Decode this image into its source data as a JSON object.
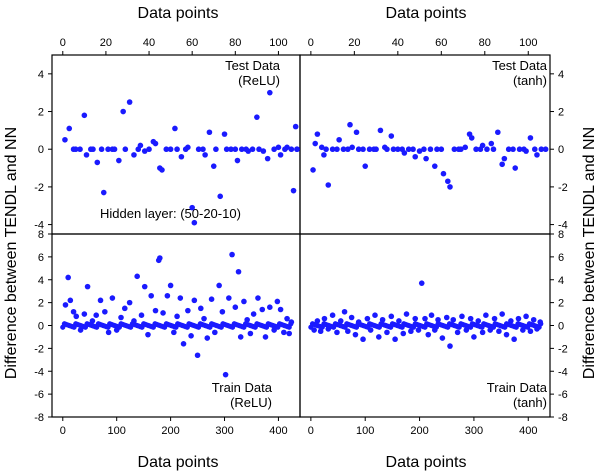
{
  "figure": {
    "x_title_top": "Data points",
    "x_title_bottom": "Data points",
    "y_title": "Difference between TENDL and NN",
    "marker_color": "#1a1aff"
  },
  "chart_data": [
    {
      "type": "scatter",
      "id": "test_relu",
      "xlabel": "Data points",
      "ylabel": "Difference between TENDL and NN",
      "xlim": [
        -5,
        110
      ],
      "ylim": [
        -4.5,
        5
      ],
      "xticks": [
        0,
        20,
        40,
        60,
        80,
        100
      ],
      "yticks": [
        -4,
        -2,
        0,
        2,
        4
      ],
      "annotation": [
        "Test Data",
        "(ReLU)"
      ],
      "note": "Hidden layer: (50-20-10)",
      "points": [
        [
          1,
          0.5
        ],
        [
          3,
          1.1
        ],
        [
          5,
          0
        ],
        [
          6,
          0
        ],
        [
          8,
          0
        ],
        [
          10,
          1.8
        ],
        [
          11,
          -0.3
        ],
        [
          13,
          0
        ],
        [
          14,
          0
        ],
        [
          16,
          -0.7
        ],
        [
          18,
          0
        ],
        [
          19,
          -2.3
        ],
        [
          21,
          0
        ],
        [
          23,
          0
        ],
        [
          24,
          0
        ],
        [
          26,
          -0.6
        ],
        [
          28,
          2.0
        ],
        [
          29,
          0
        ],
        [
          31,
          2.5
        ],
        [
          33,
          -0.3
        ],
        [
          35,
          0
        ],
        [
          36,
          0.2
        ],
        [
          38,
          -0.1
        ],
        [
          40,
          0
        ],
        [
          42,
          0.4
        ],
        [
          43,
          0.3
        ],
        [
          45,
          -1.0
        ],
        [
          46,
          -1.1
        ],
        [
          48,
          0
        ],
        [
          50,
          0
        ],
        [
          52,
          1.1
        ],
        [
          53,
          0
        ],
        [
          55,
          -0.4
        ],
        [
          57,
          0
        ],
        [
          58,
          0.1
        ],
        [
          60,
          -3.1
        ],
        [
          61,
          -3.9
        ],
        [
          63,
          0
        ],
        [
          65,
          0
        ],
        [
          66,
          -0.3
        ],
        [
          68,
          0.9
        ],
        [
          70,
          -0.9
        ],
        [
          71,
          0
        ],
        [
          73,
          -2.5
        ],
        [
          75,
          0.8
        ],
        [
          76,
          0
        ],
        [
          78,
          0
        ],
        [
          80,
          0
        ],
        [
          81,
          -0.6
        ],
        [
          83,
          0
        ],
        [
          85,
          0
        ],
        [
          86,
          -0.1
        ],
        [
          88,
          0
        ],
        [
          90,
          1.7
        ],
        [
          91,
          0
        ],
        [
          93,
          -0.1
        ],
        [
          95,
          -0.5
        ],
        [
          96,
          3.0
        ],
        [
          98,
          0
        ],
        [
          100,
          0.1
        ],
        [
          101,
          -0.3
        ],
        [
          103,
          0
        ],
        [
          104,
          0.1
        ],
        [
          106,
          0
        ],
        [
          107,
          -2.2
        ],
        [
          108,
          1.2
        ],
        [
          110,
          0
        ],
        [
          112,
          0
        ]
      ]
    },
    {
      "type": "scatter",
      "id": "test_tanh",
      "xlabel": "Data points",
      "ylabel": "Difference between TENDL and NN",
      "xlim": [
        -5,
        110
      ],
      "ylim": [
        -4.5,
        5
      ],
      "xticks": [
        0,
        20,
        40,
        60,
        80,
        100
      ],
      "yticks": [
        -4,
        -2,
        0,
        2,
        4
      ],
      "annotation": [
        "Test Data",
        "(tanh)"
      ],
      "points": [
        [
          1,
          -1.1
        ],
        [
          2,
          0.3
        ],
        [
          3,
          0.8
        ],
        [
          5,
          0.1
        ],
        [
          6,
          -0.3
        ],
        [
          7,
          0
        ],
        [
          8,
          -1.9
        ],
        [
          10,
          0
        ],
        [
          12,
          0
        ],
        [
          13,
          0.5
        ],
        [
          15,
          0
        ],
        [
          17,
          0
        ],
        [
          18,
          1.3
        ],
        [
          19,
          0.1
        ],
        [
          21,
          0.9
        ],
        [
          22,
          0
        ],
        [
          24,
          0
        ],
        [
          25,
          -0.9
        ],
        [
          27,
          0
        ],
        [
          29,
          0
        ],
        [
          30,
          0
        ],
        [
          32,
          1.0
        ],
        [
          34,
          0.1
        ],
        [
          35,
          0
        ],
        [
          37,
          0.7
        ],
        [
          38,
          0
        ],
        [
          40,
          0
        ],
        [
          42,
          0
        ],
        [
          43,
          -0.2
        ],
        [
          45,
          0
        ],
        [
          47,
          0
        ],
        [
          48,
          -0.4
        ],
        [
          50,
          -0.1
        ],
        [
          52,
          0
        ],
        [
          53,
          -0.5
        ],
        [
          55,
          0
        ],
        [
          57,
          -0.9
        ],
        [
          58,
          0
        ],
        [
          60,
          0
        ],
        [
          61,
          -1.3
        ],
        [
          63,
          -1.7
        ],
        [
          64,
          -2.0
        ],
        [
          66,
          0
        ],
        [
          68,
          0
        ],
        [
          69,
          0
        ],
        [
          71,
          0.1
        ],
        [
          73,
          0.8
        ],
        [
          74,
          0.6
        ],
        [
          76,
          0
        ],
        [
          78,
          0
        ],
        [
          79,
          0.2
        ],
        [
          81,
          0
        ],
        [
          83,
          0.3
        ],
        [
          84,
          0
        ],
        [
          86,
          0.9
        ],
        [
          88,
          -0.8
        ],
        [
          89,
          -0.5
        ],
        [
          91,
          0
        ],
        [
          93,
          0
        ],
        [
          94,
          -1.0
        ],
        [
          96,
          0
        ],
        [
          98,
          0
        ],
        [
          99,
          -0.1
        ],
        [
          101,
          0.6
        ],
        [
          103,
          0
        ],
        [
          104,
          -0.3
        ],
        [
          106,
          0
        ],
        [
          108,
          0
        ]
      ]
    },
    {
      "type": "scatter",
      "id": "train_relu",
      "xlabel": "Data points",
      "ylabel": "Difference between TENDL and NN",
      "xlim": [
        -20,
        440
      ],
      "ylim": [
        -8,
        8
      ],
      "xticks": [
        0,
        100,
        200,
        300,
        400
      ],
      "yticks": [
        -8,
        -6,
        -4,
        -2,
        0,
        2,
        4,
        6,
        8
      ],
      "annotation": [
        "Train Data",
        "(ReLU)"
      ],
      "points": [
        [
          5,
          1.8
        ],
        [
          10,
          4.2
        ],
        [
          14,
          2.2
        ],
        [
          20,
          1.2
        ],
        [
          25,
          0.8
        ],
        [
          33,
          -0.4
        ],
        [
          40,
          1.0
        ],
        [
          46,
          3.4
        ],
        [
          55,
          0.4
        ],
        [
          62,
          0.9
        ],
        [
          70,
          2.2
        ],
        [
          78,
          1.2
        ],
        [
          85,
          -0.6
        ],
        [
          92,
          2.4
        ],
        [
          100,
          -0.4
        ],
        [
          108,
          0.7
        ],
        [
          115,
          1.5
        ],
        [
          124,
          2.0
        ],
        [
          132,
          0.4
        ],
        [
          138,
          4.3
        ],
        [
          146,
          0.9
        ],
        [
          152,
          3.4
        ],
        [
          158,
          -0.8
        ],
        [
          164,
          2.6
        ],
        [
          172,
          1.3
        ],
        [
          178,
          5.7
        ],
        [
          180,
          5.9
        ],
        [
          186,
          1.1
        ],
        [
          194,
          2.6
        ],
        [
          200,
          3.5
        ],
        [
          206,
          -0.6
        ],
        [
          212,
          0.8
        ],
        [
          218,
          2.4
        ],
        [
          224,
          -1.6
        ],
        [
          232,
          1.3
        ],
        [
          238,
          -0.9
        ],
        [
          244,
          2.2
        ],
        [
          250,
          -2.6
        ],
        [
          256,
          1.5
        ],
        [
          262,
          0.6
        ],
        [
          268,
          -1.1
        ],
        [
          276,
          2.3
        ],
        [
          282,
          -0.6
        ],
        [
          290,
          3.5
        ],
        [
          296,
          1.2
        ],
        [
          302,
          -4.3
        ],
        [
          308,
          2.4
        ],
        [
          314,
          6.2
        ],
        [
          320,
          1.6
        ],
        [
          326,
          4.7
        ],
        [
          330,
          -1.0
        ],
        [
          336,
          2.1
        ],
        [
          342,
          0.5
        ],
        [
          348,
          -0.7
        ],
        [
          354,
          1.0
        ],
        [
          362,
          2.4
        ],
        [
          370,
          1.4
        ],
        [
          376,
          -1.0
        ],
        [
          384,
          1.6
        ],
        [
          392,
          -0.4
        ],
        [
          398,
          2.1
        ],
        [
          404,
          1.4
        ],
        [
          410,
          -0.6
        ],
        [
          416,
          0.6
        ],
        [
          420,
          -0.7
        ],
        [
          424,
          0.3
        ]
      ]
    },
    {
      "type": "scatter",
      "id": "train_tanh",
      "xlabel": "Data points",
      "ylabel": "Difference between TENDL and NN",
      "xlim": [
        -20,
        440
      ],
      "ylim": [
        -8,
        8
      ],
      "xticks": [
        0,
        100,
        200,
        300,
        400
      ],
      "yticks": [
        -8,
        -6,
        -4,
        -2,
        0,
        2,
        4,
        6,
        8
      ],
      "annotation": [
        "Train Data",
        "(tanh)"
      ],
      "points": [
        [
          6,
          -0.4
        ],
        [
          12,
          0.4
        ],
        [
          18,
          -0.5
        ],
        [
          25,
          0.6
        ],
        [
          32,
          -0.3
        ],
        [
          40,
          0.9
        ],
        [
          48,
          -0.6
        ],
        [
          55,
          0.4
        ],
        [
          62,
          1.2
        ],
        [
          68,
          -0.5
        ],
        [
          75,
          0.7
        ],
        [
          82,
          -0.8
        ],
        [
          88,
          0.3
        ],
        [
          96,
          -1.2
        ],
        [
          104,
          0.6
        ],
        [
          110,
          -0.4
        ],
        [
          118,
          0.9
        ],
        [
          125,
          -1.0
        ],
        [
          132,
          0.5
        ],
        [
          140,
          -0.6
        ],
        [
          148,
          0.8
        ],
        [
          155,
          -1.2
        ],
        [
          162,
          0.4
        ],
        [
          170,
          -0.7
        ],
        [
          176,
          1.0
        ],
        [
          184,
          -0.5
        ],
        [
          192,
          0.6
        ],
        [
          198,
          -0.4
        ],
        [
          204,
          3.7
        ],
        [
          210,
          0.6
        ],
        [
          216,
          -0.8
        ],
        [
          222,
          0.9
        ],
        [
          228,
          -0.4
        ],
        [
          234,
          0.5
        ],
        [
          242,
          -1.1
        ],
        [
          250,
          0.7
        ],
        [
          256,
          -1.8
        ],
        [
          262,
          0.5
        ],
        [
          270,
          -0.6
        ],
        [
          278,
          0.8
        ],
        [
          286,
          -0.4
        ],
        [
          294,
          0.6
        ],
        [
          300,
          -1.0
        ],
        [
          308,
          0.4
        ],
        [
          316,
          -0.6
        ],
        [
          322,
          0.9
        ],
        [
          330,
          -0.4
        ],
        [
          338,
          0.6
        ],
        [
          346,
          -0.5
        ],
        [
          352,
          1.0
        ],
        [
          360,
          -0.8
        ],
        [
          368,
          0.4
        ],
        [
          374,
          -1.2
        ],
        [
          382,
          0.6
        ],
        [
          390,
          -0.4
        ],
        [
          396,
          0.8
        ],
        [
          404,
          -0.5
        ],
        [
          410,
          0.5
        ],
        [
          416,
          -0.3
        ],
        [
          422,
          0.3
        ]
      ]
    }
  ]
}
